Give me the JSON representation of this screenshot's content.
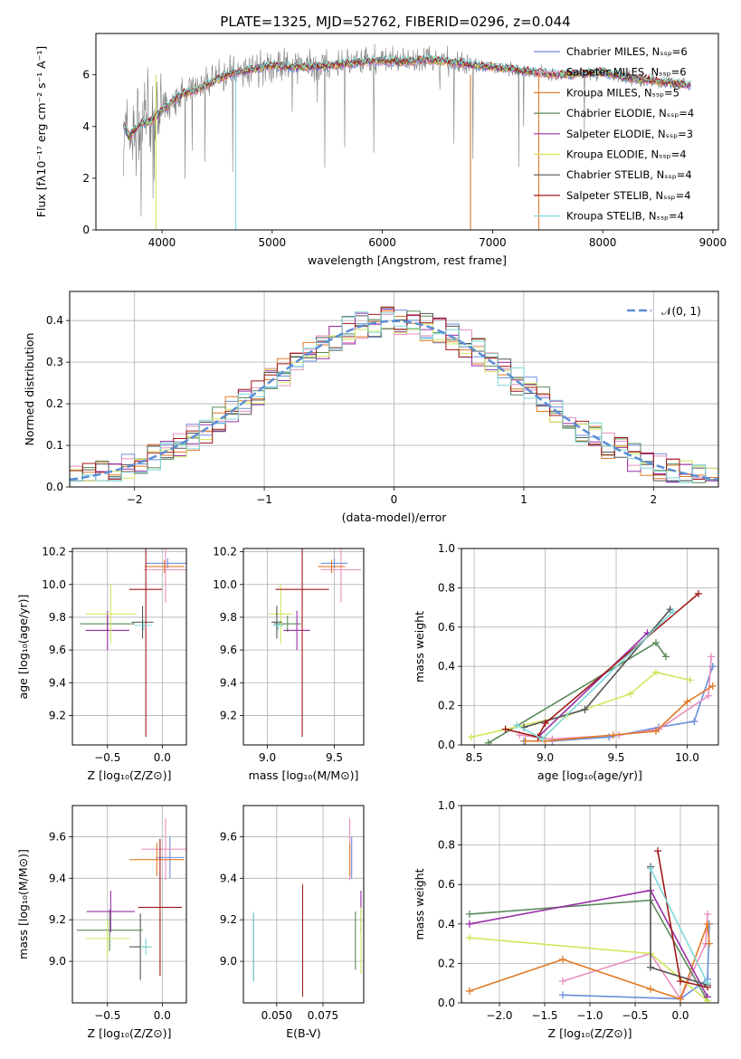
{
  "title": "PLATE=1325, MJD=52762, FIBERID=0296, z=0.044",
  "colors": {
    "chabrier_miles": "#6a8fdb",
    "salpeter_miles": "#e88fbf",
    "kroupa_miles": "#e07b28",
    "chabrier_elodie": "#5a8a5a",
    "salpeter_elodie": "#9a2fa8",
    "kroupa_elodie": "#d2e65c",
    "chabrier_stelib": "#555555",
    "salpeter_stelib": "#a01818",
    "kroupa_stelib": "#7fd8d8",
    "gauss": "#5b8ed6",
    "spectrum": "#808080"
  },
  "chart_data": [
    {
      "id": "spectrum",
      "type": "line",
      "xlabel": "wavelength [Angstrom, rest frame]",
      "ylabel": "Flux [fλ10⁻¹⁷ erg cm⁻² s⁻¹ A⁻¹]",
      "xlim": [
        3400,
        9050
      ],
      "ylim": [
        0,
        7.6
      ],
      "xticks": [
        "4000",
        "5000",
        "6000",
        "7000",
        "8000",
        "9000"
      ],
      "yticks": [
        "0",
        "2",
        "4",
        "6"
      ],
      "legend_position": "upper right",
      "legend": [
        "Chabrier MILES, Nₛₛₚ=6",
        "Salpeter MILES, Nₛₛₚ=6",
        "Kroupa MILES, Nₛₛₚ=5",
        "Chabrier ELODIE, Nₛₛₚ=4",
        "Salpeter ELODIE, Nₛₛₚ=3",
        "Kroupa ELODIE, Nₛₛₚ=4",
        "Chabrier STELIB, Nₛₛₚ=4",
        "Salpeter STELIB, Nₛₛₚ=4",
        "Kroupa STELIB, Nₛₛₚ=4"
      ],
      "continuum": {
        "x": [
          3650,
          3700,
          3800,
          3900,
          4000,
          4100,
          4200,
          4300,
          4400,
          4500,
          4600,
          4700,
          4800,
          4900,
          5000,
          5200,
          5400,
          5600,
          5800,
          6000,
          6200,
          6400,
          6600,
          6800,
          7000,
          7200,
          7400,
          7600,
          7800,
          8000,
          8200,
          8400,
          8600,
          8800
        ],
        "y": [
          4.1,
          3.6,
          4.1,
          4.2,
          4.6,
          5.0,
          5.3,
          5.4,
          5.6,
          5.8,
          6.0,
          6.1,
          6.2,
          6.3,
          6.35,
          6.3,
          6.3,
          6.4,
          6.5,
          6.55,
          6.5,
          6.6,
          6.5,
          6.4,
          6.3,
          6.2,
          6.1,
          6.0,
          6.05,
          6.1,
          5.9,
          5.8,
          5.7,
          5.6
        ]
      }
    },
    {
      "id": "residuals",
      "type": "histogram",
      "xlabel": "(data-model)/error",
      "ylabel": "Normed distribution",
      "xlim": [
        -2.5,
        2.5
      ],
      "ylim": [
        0,
        0.47
      ],
      "xticks": [
        "−2",
        "−1",
        "0",
        "1",
        "2"
      ],
      "yticks": [
        "0.0",
        "0.1",
        "0.2",
        "0.3",
        "0.4"
      ],
      "legend": [
        "𝒩(0, 1)"
      ],
      "legend_position": "upper right",
      "grid": true,
      "series": [
        "Chabrier MILES",
        "Salpeter MILES",
        "Kroupa MILES",
        "Chabrier ELODIE",
        "Salpeter ELODIE",
        "Kroupa ELODIE",
        "Chabrier STELIB",
        "Salpeter STELIB",
        "Kroupa STELIB"
      ]
    },
    {
      "id": "z-age",
      "type": "errorbar",
      "xlabel": "Z [log₁₀(Z/Z⊙)]",
      "ylabel": "age  [log₁₀(age/yr)]",
      "xlim": [
        -0.82,
        0.22
      ],
      "ylim": [
        9.02,
        10.22
      ],
      "xticks": [
        "−0.5",
        "0.0"
      ],
      "yticks": [
        "9.2",
        "9.4",
        "9.6",
        "9.8",
        "10.0",
        "10.2"
      ],
      "grid": true,
      "points": [
        {
          "s": "chabrier_miles",
          "x": 0.05,
          "xe": 0.2,
          "y": 10.13,
          "ye": 0.03
        },
        {
          "s": "salpeter_miles",
          "x": 0.03,
          "xe": 0.2,
          "y": 10.09,
          "ye": 0.2
        },
        {
          "s": "kroupa_miles",
          "x": 0.02,
          "xe": 0.18,
          "y": 10.11,
          "ye": 0.04
        },
        {
          "s": "chabrier_elodie",
          "x": -0.5,
          "xe": 0.25,
          "y": 9.76,
          "ye": 0.05
        },
        {
          "s": "salpeter_elodie",
          "x": -0.5,
          "xe": 0.2,
          "y": 9.72,
          "ye": 0.12
        },
        {
          "s": "kroupa_elodie",
          "x": -0.47,
          "xe": 0.23,
          "y": 9.82,
          "ye": 0.18
        },
        {
          "s": "chabrier_stelib",
          "x": -0.18,
          "xe": 0.1,
          "y": 9.77,
          "ye": 0.1
        },
        {
          "s": "salpeter_stelib",
          "x": -0.15,
          "xe": 0.15,
          "y": 9.97,
          "ye": 0.9
        },
        {
          "s": "kroupa_stelib",
          "x": -0.17,
          "xe": 0.08,
          "y": 9.75,
          "ye": 0.03
        }
      ]
    },
    {
      "id": "mass-age",
      "type": "errorbar",
      "xlabel": "mass [log₁₀(M/M⊙)]",
      "ylabel": "",
      "xlim": [
        8.82,
        9.72
      ],
      "ylim": [
        9.02,
        10.22
      ],
      "xticks": [
        "9.0",
        "9.5"
      ],
      "yticks": [
        "9.2",
        "9.4",
        "9.6",
        "9.8",
        "10.0",
        "10.2"
      ],
      "grid": true,
      "points": [
        {
          "s": "chabrier_miles",
          "x": 9.5,
          "xe": 0.1,
          "y": 10.13,
          "ye": 0.03
        },
        {
          "s": "salpeter_miles",
          "x": 9.55,
          "xe": 0.15,
          "y": 10.09,
          "ye": 0.2
        },
        {
          "s": "kroupa_miles",
          "x": 9.48,
          "xe": 0.1,
          "y": 10.11,
          "ye": 0.04
        },
        {
          "s": "chabrier_elodie",
          "x": 9.15,
          "xe": 0.1,
          "y": 9.76,
          "ye": 0.05
        },
        {
          "s": "salpeter_elodie",
          "x": 9.22,
          "xe": 0.1,
          "y": 9.72,
          "ye": 0.12
        },
        {
          "s": "kroupa_elodie",
          "x": 9.1,
          "xe": 0.09,
          "y": 9.82,
          "ye": 0.18
        },
        {
          "s": "chabrier_stelib",
          "x": 9.07,
          "xe": 0.04,
          "y": 9.77,
          "ye": 0.1
        },
        {
          "s": "salpeter_stelib",
          "x": 9.26,
          "xe": 0.2,
          "y": 9.97,
          "ye": 0.9
        },
        {
          "s": "kroupa_stelib",
          "x": 9.08,
          "xe": 0.04,
          "y": 9.75,
          "ye": 0.03
        }
      ]
    },
    {
      "id": "age-weight",
      "type": "line",
      "xlabel": "age  [log₁₀(age/yr)]",
      "ylabel": "mass weight",
      "xlim": [
        8.41,
        10.22
      ],
      "ylim": [
        0,
        1.0
      ],
      "xticks": [
        "8.5",
        "9.0",
        "9.5",
        "10.0"
      ],
      "yticks": [
        "0.0",
        "0.2",
        "0.4",
        "0.6",
        "0.8",
        "1.0"
      ],
      "grid": true,
      "series": [
        {
          "s": "chabrier_miles",
          "x": [
            8.85,
            9.05,
            9.45,
            9.8,
            10.05,
            10.18
          ],
          "y": [
            0.02,
            0.02,
            0.04,
            0.09,
            0.12,
            0.4
          ]
        },
        {
          "s": "salpeter_miles",
          "x": [
            8.82,
            9.05,
            9.52,
            9.8,
            10.15,
            10.17
          ],
          "y": [
            0.05,
            0.03,
            0.05,
            0.08,
            0.25,
            0.45
          ]
        },
        {
          "s": "kroupa_miles",
          "x": [
            8.86,
            9.0,
            9.48,
            9.78,
            10.0,
            10.18
          ],
          "y": [
            0.02,
            0.02,
            0.05,
            0.07,
            0.22,
            0.3
          ]
        },
        {
          "s": "chabrier_elodie",
          "x": [
            8.6,
            9.78,
            9.85
          ],
          "y": [
            0.01,
            0.52,
            0.45
          ]
        },
        {
          "s": "salpeter_elodie",
          "x": [
            8.95,
            9.72
          ],
          "y": [
            0.04,
            0.57
          ]
        },
        {
          "s": "kroupa_elodie",
          "x": [
            8.48,
            9.15,
            9.6,
            9.78,
            10.02
          ],
          "y": [
            0.04,
            0.15,
            0.26,
            0.37,
            0.33
          ]
        },
        {
          "s": "chabrier_stelib",
          "x": [
            8.85,
            9.28,
            9.88
          ],
          "y": [
            0.09,
            0.18,
            0.69
          ]
        },
        {
          "s": "salpeter_stelib",
          "x": [
            8.72,
            8.95,
            9.0,
            10.08
          ],
          "y": [
            0.08,
            0.04,
            0.11,
            0.77
          ]
        },
        {
          "s": "kroupa_stelib",
          "x": [
            8.8,
            8.98,
            9.9
          ],
          "y": [
            0.1,
            0.03,
            0.68
          ]
        }
      ]
    },
    {
      "id": "z-mass",
      "type": "errorbar",
      "xlabel": "Z [log₁₀(Z/Z⊙)]",
      "ylabel": "mass [log₁₀(M/M⊙)]",
      "xlim": [
        -0.82,
        0.22
      ],
      "ylim": [
        8.8,
        9.75
      ],
      "xticks": [
        "−0.5",
        "0.0"
      ],
      "yticks": [
        "9.0",
        "9.2",
        "9.4",
        "9.6"
      ],
      "grid": true,
      "points": [
        {
          "s": "chabrier_miles",
          "x": 0.07,
          "xe": 0.13,
          "y": 9.5,
          "ye": 0.1
        },
        {
          "s": "salpeter_miles",
          "x": 0.03,
          "xe": 0.22,
          "y": 9.54,
          "ye": 0.15
        },
        {
          "s": "kroupa_miles",
          "x": -0.05,
          "xe": 0.25,
          "y": 9.49,
          "ye": 0.08
        },
        {
          "s": "chabrier_elodie",
          "x": -0.48,
          "xe": 0.3,
          "y": 9.15,
          "ye": 0.1
        },
        {
          "s": "salpeter_elodie",
          "x": -0.47,
          "xe": 0.22,
          "y": 9.24,
          "ye": 0.1
        },
        {
          "s": "kroupa_elodie",
          "x": -0.5,
          "xe": 0.2,
          "y": 9.11,
          "ye": 0.09
        },
        {
          "s": "chabrier_stelib",
          "x": -0.2,
          "xe": 0.1,
          "y": 9.07,
          "ye": 0.16
        },
        {
          "s": "salpeter_stelib",
          "x": -0.02,
          "xe": 0.2,
          "y": 9.26,
          "ye": 0.33
        },
        {
          "s": "kroupa_stelib",
          "x": -0.15,
          "xe": 0.05,
          "y": 9.07,
          "ye": 0.04
        }
      ]
    },
    {
      "id": "ebv-mass",
      "type": "errorbar",
      "xlabel": "E(B-V)",
      "ylabel": "",
      "xlim": [
        0.032,
        0.097
      ],
      "ylim": [
        8.8,
        9.75
      ],
      "xticks": [
        "0.050",
        "0.075"
      ],
      "yticks": [
        "9.0",
        "9.2",
        "9.4",
        "9.6"
      ],
      "grid": true,
      "points": [
        {
          "s": "chabrier_miles",
          "x": 0.0905,
          "xe": 0,
          "y": 9.5,
          "ye": 0.1
        },
        {
          "s": "salpeter_miles",
          "x": 0.0895,
          "xe": 0,
          "y": 9.54,
          "ye": 0.15
        },
        {
          "s": "kroupa_miles",
          "x": 0.0895,
          "xe": 0,
          "y": 9.49,
          "ye": 0.08
        },
        {
          "s": "chabrier_elodie",
          "x": 0.0925,
          "xe": 0,
          "y": 9.1,
          "ye": 0.14
        },
        {
          "s": "salpeter_elodie",
          "x": 0.0955,
          "xe": 0,
          "y": 9.24,
          "ye": 0.1
        },
        {
          "s": "kroupa_elodie",
          "x": 0.0955,
          "xe": 0,
          "y": 9.1,
          "ye": 0.16
        },
        {
          "s": "chabrier_stelib",
          "x": 0.0375,
          "xe": 0,
          "y": 9.07,
          "ye": 0.16
        },
        {
          "s": "salpeter_stelib",
          "x": 0.064,
          "xe": 0,
          "y": 9.1,
          "ye": 0.27
        },
        {
          "s": "kroupa_stelib",
          "x": 0.0375,
          "xe": 0,
          "y": 9.07,
          "ye": 0.17
        }
      ]
    },
    {
      "id": "z-weight",
      "type": "line",
      "xlabel": "Z [log₁₀(Z/Z⊙)]",
      "ylabel": "mass weight",
      "xlim": [
        -2.42,
        0.42
      ],
      "ylim": [
        0,
        1.0
      ],
      "xticks": [
        "−2.0",
        "−1.5",
        "−1.0",
        "−0.5",
        "0.0"
      ],
      "yticks": [
        "0.0",
        "0.2",
        "0.4",
        "0.6",
        "0.8",
        "1.0"
      ],
      "grid": true,
      "series": [
        {
          "s": "chabrier_miles",
          "x": [
            -1.3,
            0.0,
            0.3,
            0.32
          ],
          "y": [
            0.04,
            0.02,
            0.12,
            0.4
          ]
        },
        {
          "s": "salpeter_miles",
          "x": [
            -1.3,
            -0.33,
            0.0,
            0.28,
            0.3
          ],
          "y": [
            0.11,
            0.25,
            0.02,
            0.3,
            0.45
          ]
        },
        {
          "s": "kroupa_miles",
          "x": [
            -2.33,
            -1.3,
            -0.33,
            0.0,
            0.3,
            0.32
          ],
          "y": [
            0.06,
            0.22,
            0.07,
            0.02,
            0.4,
            0.3
          ]
        },
        {
          "s": "chabrier_elodie",
          "x": [
            -2.33,
            -0.33,
            0.3
          ],
          "y": [
            0.45,
            0.52,
            0.01
          ]
        },
        {
          "s": "salpeter_elodie",
          "x": [
            -2.33,
            -0.33,
            0.3
          ],
          "y": [
            0.4,
            0.57,
            0.03
          ]
        },
        {
          "s": "kroupa_elodie",
          "x": [
            -2.33,
            -0.33,
            0.3
          ],
          "y": [
            0.33,
            0.25,
            0.01
          ]
        },
        {
          "s": "chabrier_stelib",
          "x": [
            -0.33,
            -0.33,
            0.3
          ],
          "y": [
            0.69,
            0.18,
            0.09
          ]
        },
        {
          "s": "salpeter_stelib",
          "x": [
            -0.25,
            0.0,
            0.3
          ],
          "y": [
            0.77,
            0.11,
            0.08
          ]
        },
        {
          "s": "kroupa_stelib",
          "x": [
            -0.33,
            0.3
          ],
          "y": [
            0.68,
            0.1
          ]
        }
      ]
    }
  ]
}
